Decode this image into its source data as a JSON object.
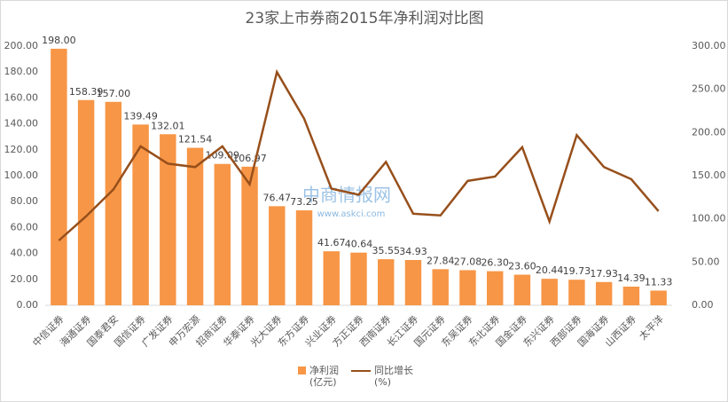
{
  "chart_data": {
    "type": "bar-line",
    "title": "23家上市券商2015年净利润对比图",
    "watermark": [
      "中商情报网",
      "www.askci.com"
    ],
    "categories": [
      "中信证券",
      "海通证券",
      "国泰君安",
      "国信证券",
      "广发证券",
      "申万宏源",
      "招商证券",
      "华泰证券",
      "光大证券",
      "东方证券",
      "兴业证券",
      "方正证券",
      "西南证券",
      "长江证券",
      "国元证券",
      "东吴证券",
      "东北证券",
      "国金证券",
      "东兴证券",
      "西部证券",
      "国海证券",
      "山西证券",
      "太平洋"
    ],
    "series": [
      {
        "name": "净利润\n(亿元)",
        "color": "#f79646",
        "kind": "bar",
        "values": [
          198.0,
          158.39,
          157.0,
          139.49,
          132.01,
          121.54,
          109.09,
          106.97,
          76.47,
          73.25,
          41.67,
          40.64,
          35.55,
          34.93,
          27.84,
          27.08,
          26.3,
          23.6,
          20.44,
          19.73,
          17.93,
          14.39,
          11.33
        ],
        "value_labels": [
          "198.00",
          "158.39",
          "157.00",
          "139.49",
          "132.01",
          "121.54",
          "109.09",
          "106.97",
          "76.47",
          "73.25",
          "41.67",
          "40.64",
          "35.55",
          "34.93",
          "27.84",
          "27.08",
          "26.30",
          "23.60",
          "20.44",
          "19.73",
          "17.93",
          "14.39",
          "11.33"
        ]
      },
      {
        "name": "同比增长\n(%)",
        "color": "#974f1b",
        "kind": "line",
        "axis": "y2",
        "values": [
          75,
          103,
          134,
          184,
          164,
          160,
          184,
          140,
          270,
          216,
          135,
          128,
          166,
          106,
          104,
          144,
          149,
          183,
          97,
          197,
          160,
          146,
          109
        ]
      }
    ],
    "ylim": [
      0,
      200
    ],
    "yticks": [
      {
        "value": 0,
        "label": "0.00"
      },
      {
        "value": 20,
        "label": "20.00"
      },
      {
        "value": 40,
        "label": "40.00"
      },
      {
        "value": 60,
        "label": "60.00"
      },
      {
        "value": 80,
        "label": "80.00"
      },
      {
        "value": 100,
        "label": "100.00"
      },
      {
        "value": 120,
        "label": "120.00"
      },
      {
        "value": 140,
        "label": "140.00"
      },
      {
        "value": 160,
        "label": "160.00"
      },
      {
        "value": 180,
        "label": "180.00"
      },
      {
        "value": 200,
        "label": "200.00"
      }
    ],
    "y2lim": [
      0,
      300
    ],
    "y2ticks": [
      {
        "value": 0,
        "label": "0.00"
      },
      {
        "value": 50,
        "label": "50.00"
      },
      {
        "value": 100,
        "label": "100.00"
      },
      {
        "value": 150,
        "label": "150.00"
      },
      {
        "value": 200,
        "label": "200.00"
      },
      {
        "value": 250,
        "label": "250.00"
      },
      {
        "value": 300,
        "label": "300.00"
      }
    ],
    "grid": false
  }
}
